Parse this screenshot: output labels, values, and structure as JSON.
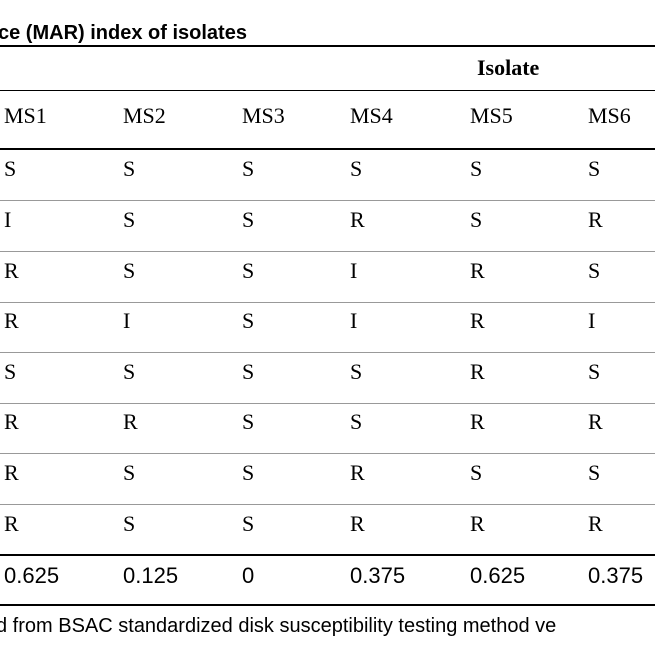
{
  "table": {
    "caption": "ce (MAR) index of isolates",
    "group_header": "Isolate",
    "columns": [
      "MS1",
      "MS2",
      "MS3",
      "MS4",
      "MS5",
      "MS6"
    ],
    "rows": [
      [
        "S",
        "S",
        "S",
        "S",
        "S",
        "S"
      ],
      [
        "I",
        "S",
        "S",
        "R",
        "S",
        "R"
      ],
      [
        "R",
        "S",
        "S",
        "I",
        "R",
        "S"
      ],
      [
        "R",
        "I",
        "S",
        "I",
        "R",
        "I"
      ],
      [
        "S",
        "S",
        "S",
        "S",
        "R",
        "S"
      ],
      [
        "R",
        "R",
        "S",
        "S",
        "R",
        "R"
      ],
      [
        "R",
        "S",
        "S",
        "R",
        "S",
        "S"
      ],
      [
        "R",
        "S",
        "S",
        "R",
        "R",
        "R"
      ]
    ],
    "mar_values": [
      "0.625",
      "0.125",
      "0",
      "0.375",
      "0.625",
      "0.375"
    ],
    "footnote": "d from BSAC standardized disk susceptibility testing method ve"
  }
}
